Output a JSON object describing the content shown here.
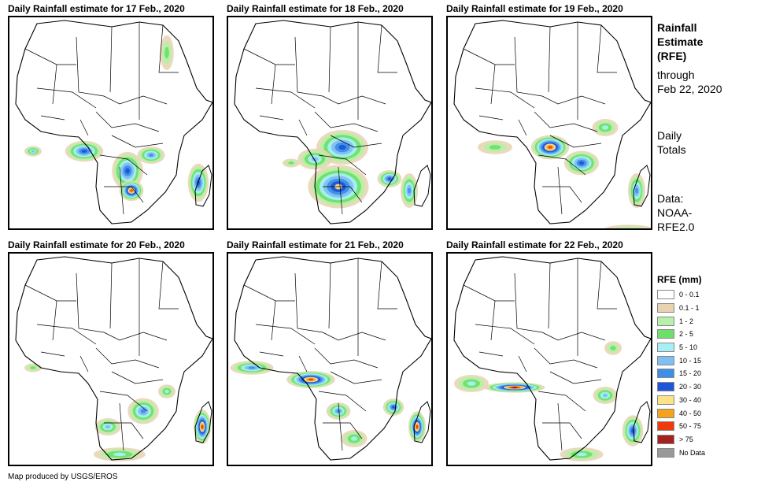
{
  "panels": [
    {
      "title": "Daily Rainfall estimate for 17 Feb., 2020"
    },
    {
      "title": "Daily Rainfall estimate for 18 Feb., 2020"
    },
    {
      "title": "Daily Rainfall estimate for 19 Feb., 2020"
    },
    {
      "title": "Daily Rainfall estimate for 20 Feb., 2020"
    },
    {
      "title": "Daily Rainfall estimate for 21 Feb., 2020"
    },
    {
      "title": "Daily Rainfall estimate for 22 Feb., 2020"
    }
  ],
  "side": {
    "title_line1": "Rainfall",
    "title_line2": "Estimate",
    "title_line3": "(RFE)",
    "through_line1": "through",
    "through_line2": "Feb 22, 2020",
    "daily_line1": "Daily",
    "daily_line2": "Totals",
    "data_line1": "Data:",
    "data_line2": "NOAA-",
    "data_line3": "RFE2.0"
  },
  "legend": {
    "title": "RFE (mm)",
    "items": [
      {
        "label": "0 - 0.1",
        "color": "#ffffff"
      },
      {
        "label": "0.1 - 1",
        "color": "#e8d2b0"
      },
      {
        "label": "1 - 2",
        "color": "#b7f0a8"
      },
      {
        "label": "2 - 5",
        "color": "#6ee06a"
      },
      {
        "label": "5 - 10",
        "color": "#a8eef5"
      },
      {
        "label": "10 - 15",
        "color": "#7fbff2"
      },
      {
        "label": "15 - 20",
        "color": "#3d8fe6"
      },
      {
        "label": "20 - 30",
        "color": "#1f55d9"
      },
      {
        "label": "30 - 40",
        "color": "#fde28a"
      },
      {
        "label": "40 - 50",
        "color": "#f5a21c"
      },
      {
        "label": "50 - 75",
        "color": "#ef3a0c"
      },
      {
        "label": "> 75",
        "color": "#a3221e"
      },
      {
        "label": "No Data",
        "color": "#999999"
      }
    ]
  },
  "credit": "Map produced by USGS/EROS"
}
